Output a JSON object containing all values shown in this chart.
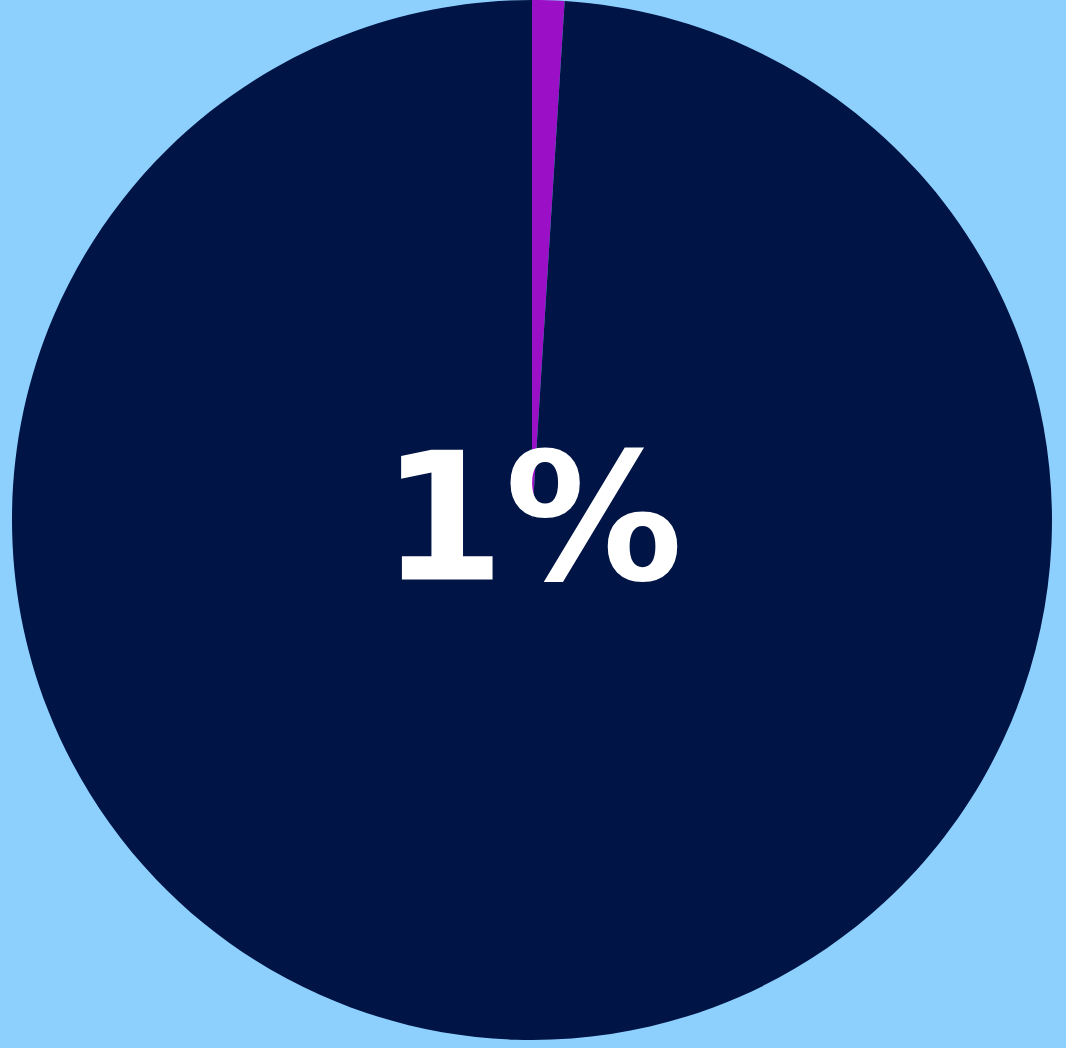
{
  "chart_data": {
    "type": "pie",
    "categories": [
      null,
      null
    ],
    "values": [
      1,
      99
    ],
    "colors": [
      "#9b0fc6",
      "#001446"
    ],
    "annotations": [
      "1%"
    ]
  }
}
